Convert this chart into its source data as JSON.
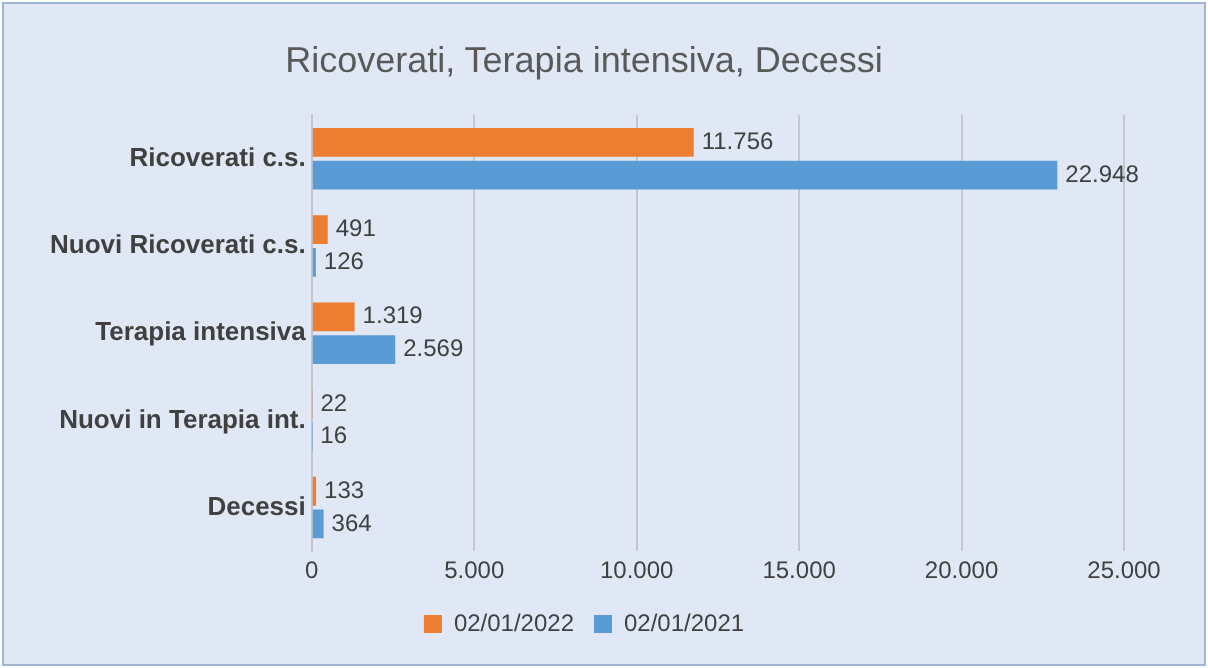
{
  "chart_data": {
    "type": "bar",
    "orientation": "horizontal",
    "title": "Ricoverati, Terapia intensiva, Decessi",
    "categories": [
      "Ricoverati c.s.",
      "Nuovi Ricoverati c.s.",
      "Terapia intensiva",
      "Nuovi in Terapia int.",
      "Decessi"
    ],
    "series": [
      {
        "name": "02/01/2022",
        "color": "#ed7d31",
        "values": [
          11756,
          491,
          1319,
          22,
          133
        ],
        "value_labels": [
          "11.756",
          "491",
          "1.319",
          "22",
          "133"
        ]
      },
      {
        "name": "02/01/2021",
        "color": "#5b9bd5",
        "values": [
          22948,
          126,
          2569,
          16,
          364
        ],
        "value_labels": [
          "22.948",
          "126",
          "2.569",
          "16",
          "364"
        ]
      }
    ],
    "xlim": [
      0,
      25000
    ],
    "xticks": [
      0,
      {
        "value": 5000,
        "label": "5.000"
      },
      {
        "value": 10000,
        "label": "10.000"
      },
      {
        "value": 15000,
        "label": "15.000"
      },
      {
        "value": 20000,
        "label": "20.000"
      },
      {
        "value": 25000,
        "label": "25.000"
      }
    ],
    "grid": "x",
    "legend": "bottom"
  }
}
